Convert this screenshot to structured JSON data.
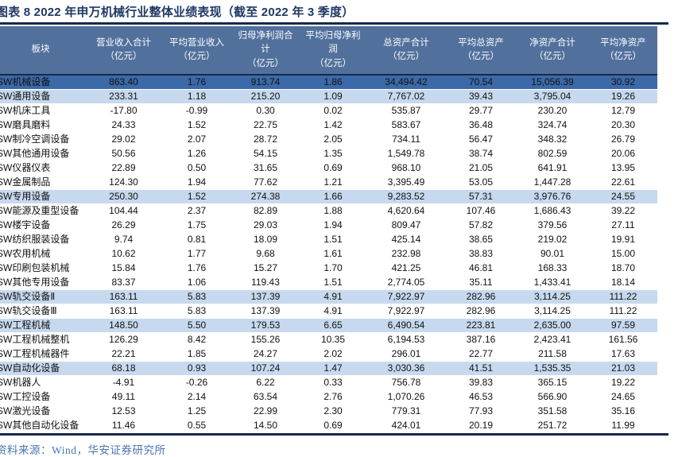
{
  "title": "图表 8 2022 年申万机械行业整体业绩表现（截至 2022 年 3 季度）",
  "source_note": "资料来源：Wind，华安证券研究所",
  "colors": {
    "title_text": "#1F3864",
    "rule": "#16294A",
    "header_bg": "#51719C",
    "header_text": "#FFFFFF",
    "total_row_bg": "#3C69A8",
    "highlight_row_bg": "#C7D9EE",
    "body_text": "#111111",
    "source_text": "#4A74B4"
  },
  "table": {
    "columns": [
      {
        "label": "板块"
      },
      {
        "label": "营业收入合计\n（亿元）"
      },
      {
        "label": "平均营业收入\n（亿元）"
      },
      {
        "label": "归母净利润合\n计\n（亿元）"
      },
      {
        "label": "平均归母净利\n润\n（亿元）"
      },
      {
        "label": "总资产合计\n（亿元）"
      },
      {
        "label": "平均总资产\n（亿元）"
      },
      {
        "label": "净资产合计\n（亿元）"
      },
      {
        "label": "平均净资产\n（亿元）"
      }
    ],
    "rows": [
      {
        "name": "SW机械设备",
        "style": "dark",
        "values": [
          "863.40",
          "1.76",
          "913.74",
          "1.86",
          "34,494.42",
          "70.54",
          "15,056.39",
          "30.92"
        ]
      },
      {
        "name": "SW通用设备",
        "style": "light",
        "values": [
          "233.31",
          "1.18",
          "215.20",
          "1.09",
          "7,767.02",
          "39.43",
          "3,795.04",
          "19.26"
        ]
      },
      {
        "name": "SW机床工具",
        "style": "white",
        "values": [
          "-17.80",
          "-0.99",
          "0.30",
          "0.02",
          "535.87",
          "29.77",
          "230.20",
          "12.79"
        ]
      },
      {
        "name": "SW磨具磨料",
        "style": "white",
        "values": [
          "24.33",
          "1.52",
          "22.75",
          "1.42",
          "583.67",
          "36.48",
          "324.74",
          "20.30"
        ]
      },
      {
        "name": "SW制冷空调设备",
        "style": "white",
        "values": [
          "29.02",
          "2.07",
          "28.72",
          "2.05",
          "734.11",
          "56.47",
          "348.32",
          "26.79"
        ]
      },
      {
        "name": "SW其他通用设备",
        "style": "white",
        "values": [
          "50.56",
          "1.26",
          "54.15",
          "1.35",
          "1,549.78",
          "38.74",
          "802.59",
          "20.06"
        ]
      },
      {
        "name": "SW仪器仪表",
        "style": "white",
        "values": [
          "22.89",
          "0.50",
          "31.65",
          "0.69",
          "968.10",
          "21.05",
          "641.91",
          "13.95"
        ]
      },
      {
        "name": "SW金属制品",
        "style": "white",
        "values": [
          "124.30",
          "1.94",
          "77.62",
          "1.21",
          "3,395.49",
          "53.05",
          "1,447.28",
          "22.61"
        ]
      },
      {
        "name": "SW专用设备",
        "style": "light",
        "values": [
          "250.30",
          "1.52",
          "274.38",
          "1.66",
          "9,283.52",
          "57.31",
          "3,976.76",
          "24.55"
        ]
      },
      {
        "name": "SW能源及重型设备",
        "style": "white",
        "values": [
          "104.44",
          "2.37",
          "82.89",
          "1.88",
          "4,620.64",
          "107.46",
          "1,686.43",
          "39.22"
        ]
      },
      {
        "name": "SW楼宇设备",
        "style": "white",
        "values": [
          "26.29",
          "1.75",
          "29.03",
          "1.94",
          "809.47",
          "57.82",
          "379.56",
          "27.11"
        ]
      },
      {
        "name": "SW纺织服装设备",
        "style": "white",
        "values": [
          "9.74",
          "0.81",
          "18.09",
          "1.51",
          "425.14",
          "38.65",
          "219.02",
          "19.91"
        ]
      },
      {
        "name": "SW农用机械",
        "style": "white",
        "values": [
          "10.62",
          "1.77",
          "9.68",
          "1.61",
          "232.98",
          "38.83",
          "90.01",
          "15.00"
        ]
      },
      {
        "name": "SW印刷包装机械",
        "style": "white",
        "values": [
          "15.84",
          "1.76",
          "15.27",
          "1.70",
          "421.25",
          "46.81",
          "168.33",
          "18.70"
        ]
      },
      {
        "name": "SW其他专用设备",
        "style": "white",
        "values": [
          "83.37",
          "1.06",
          "119.43",
          "1.51",
          "2,774.05",
          "35.11",
          "1,433.41",
          "18.14"
        ]
      },
      {
        "name": "SW轨交设备Ⅱ",
        "style": "light",
        "values": [
          "163.11",
          "5.83",
          "137.39",
          "4.91",
          "7,922.97",
          "282.96",
          "3,114.25",
          "111.22"
        ]
      },
      {
        "name": "SW轨交设备Ⅲ",
        "style": "white",
        "values": [
          "163.11",
          "5.83",
          "137.39",
          "4.91",
          "7,922.97",
          "282.96",
          "3,114.25",
          "111.22"
        ]
      },
      {
        "name": "SW工程机械",
        "style": "light",
        "values": [
          "148.50",
          "5.50",
          "179.53",
          "6.65",
          "6,490.54",
          "223.81",
          "2,635.00",
          "97.59"
        ]
      },
      {
        "name": "SW工程机械整机",
        "style": "white",
        "values": [
          "126.29",
          "8.42",
          "155.26",
          "10.35",
          "6,194.53",
          "387.16",
          "2,423.41",
          "161.56"
        ]
      },
      {
        "name": "SW工程机械器件",
        "style": "white",
        "values": [
          "22.21",
          "1.85",
          "24.27",
          "2.02",
          "296.01",
          "22.77",
          "211.58",
          "17.63"
        ]
      },
      {
        "name": "SW自动化设备",
        "style": "light",
        "values": [
          "68.18",
          "0.93",
          "107.24",
          "1.47",
          "3,030.36",
          "41.51",
          "1,535.35",
          "21.03"
        ]
      },
      {
        "name": "SW机器人",
        "style": "white",
        "values": [
          "-4.91",
          "-0.26",
          "6.22",
          "0.33",
          "756.78",
          "39.83",
          "365.15",
          "19.22"
        ]
      },
      {
        "name": "SW工控设备",
        "style": "white",
        "values": [
          "49.11",
          "2.14",
          "63.54",
          "2.76",
          "1,070.26",
          "46.53",
          "566.90",
          "24.65"
        ]
      },
      {
        "name": "SW激光设备",
        "style": "white",
        "values": [
          "12.53",
          "1.25",
          "22.99",
          "2.30",
          "779.31",
          "77.93",
          "351.58",
          "35.16"
        ]
      },
      {
        "name": "SW其他自动化设备",
        "style": "white",
        "values": [
          "11.46",
          "0.55",
          "14.50",
          "0.69",
          "424.01",
          "20.19",
          "251.72",
          "11.99"
        ]
      }
    ]
  }
}
